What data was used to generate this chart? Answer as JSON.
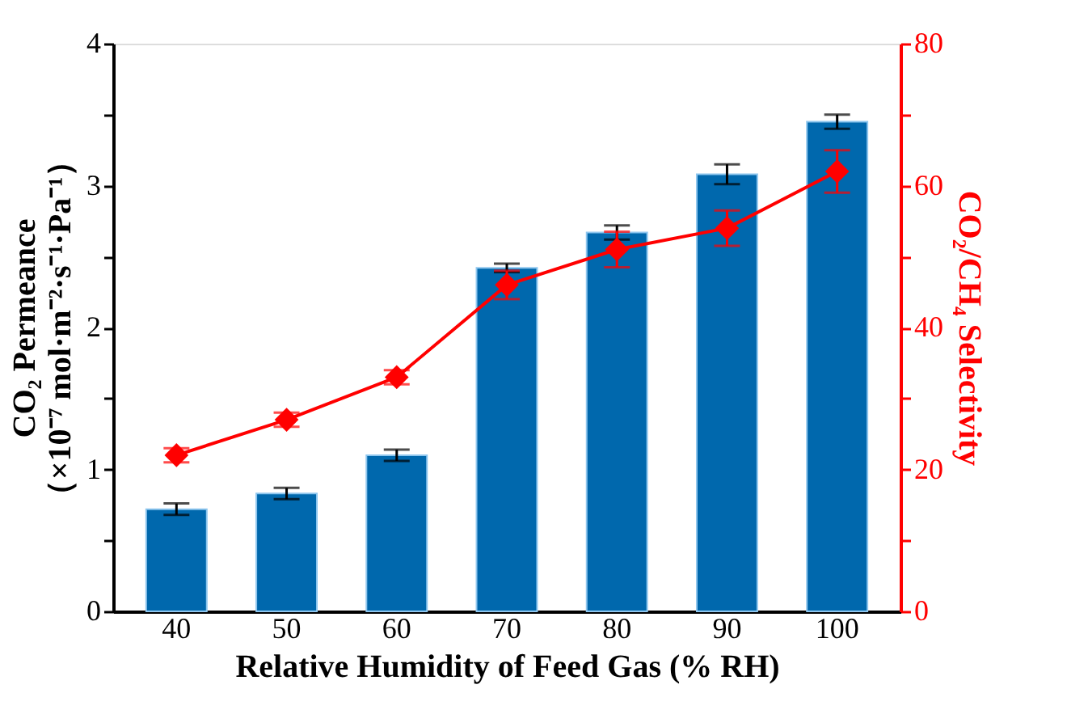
{
  "chart_data": {
    "type": "bar",
    "xlabel": "Relative Humidity of Feed Gas (% RH)",
    "ylabel": "CO₂ Permeance\n（×10⁻⁷ mol·m⁻²·s⁻¹·Pa⁻¹）",
    "y2label": "CO₂/CH₄ Selectivity",
    "categories": [
      "40",
      "50",
      "60",
      "70",
      "80",
      "90",
      "100"
    ],
    "series": [
      {
        "color": "#0068ad",
        "values": [
          0.72,
          0.83,
          1.1,
          2.42,
          2.67,
          3.08,
          3.45
        ],
        "errors": [
          0.04,
          0.04,
          0.04,
          0.03,
          0.05,
          0.07,
          0.05
        ]
      },
      {
        "type": "line",
        "axis": "y2",
        "color": "#ff0000",
        "marker": "diamond",
        "line_style": "solid",
        "values": [
          22,
          27,
          33,
          46,
          51,
          54,
          62
        ],
        "errors": [
          1,
          1,
          1,
          2,
          2.5,
          2.5,
          3
        ]
      }
    ],
    "ylim": [
      0,
      4
    ],
    "yticks": [
      0,
      {
        "value": 0.5,
        "label": null
      },
      1,
      {
        "value": 1.5,
        "label": null
      },
      2,
      {
        "value": 2.5,
        "label": null
      },
      3,
      {
        "value": 3.5,
        "label": null
      },
      4
    ],
    "y2lim": [
      0,
      80
    ],
    "y2ticks": [
      0,
      {
        "value": 10,
        "label": null
      },
      20,
      {
        "value": 30,
        "label": null
      },
      40,
      {
        "value": 50,
        "label": null
      },
      60,
      {
        "value": 70,
        "label": null
      },
      80
    ],
    "grid": false
  }
}
